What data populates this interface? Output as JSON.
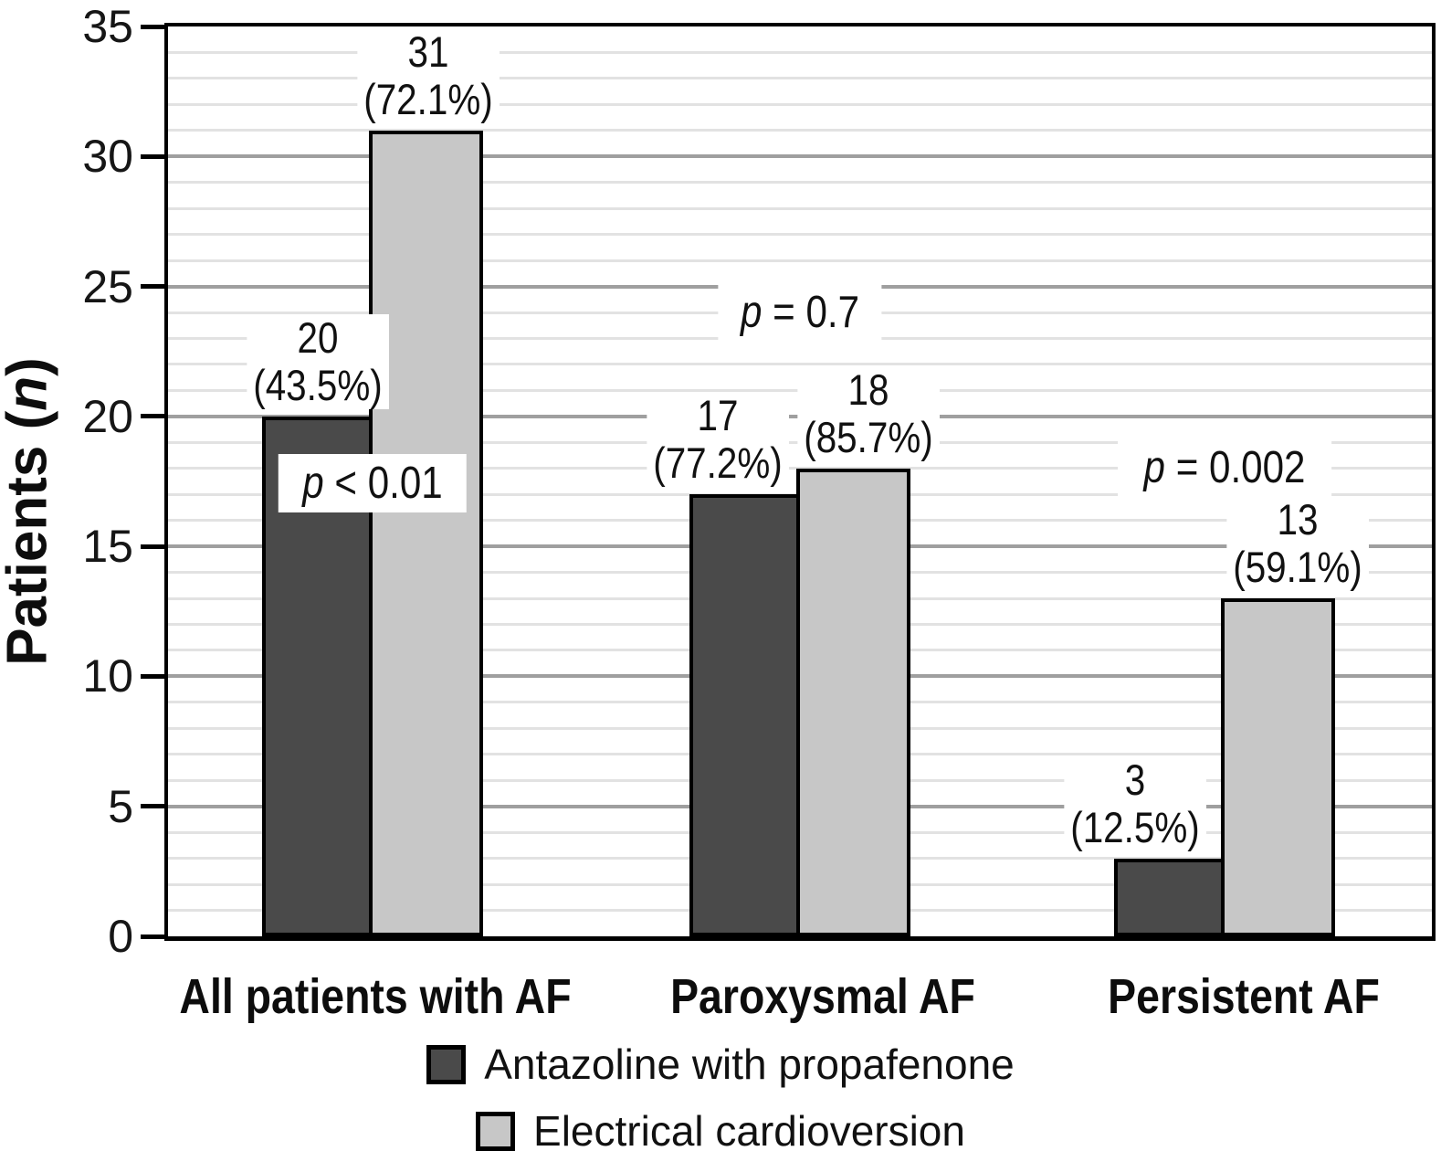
{
  "chart_data": {
    "type": "bar",
    "title": "",
    "xlabel": "",
    "ylabel": "Patients (n)",
    "ylabel_parts": {
      "pre": "Patients (",
      "italic": "n",
      "post": ")"
    },
    "ylim": [
      0,
      35
    ],
    "yticks": [
      0,
      5,
      10,
      15,
      20,
      25,
      30,
      35
    ],
    "ytick_labels": [
      "0",
      "5",
      "10",
      "15",
      "20",
      "25",
      "30",
      "35"
    ],
    "minor_gridline_step": 1,
    "major_gridline_step": 5,
    "grid": "horizontal",
    "legend_position": "bottom-center",
    "categories": [
      "All patients with AF",
      "Paroxysmal AF",
      "Persistent AF"
    ],
    "series": [
      {
        "name": "Antazoline with propafenone",
        "color": "#4a4a4a",
        "values": [
          20,
          17,
          3
        ],
        "count_labels": [
          "20",
          "17",
          "3"
        ],
        "percent_labels": [
          "(43.5%)",
          "(77.2%)",
          "(12.5%)"
        ]
      },
      {
        "name": "Electrical cardioversion",
        "color": "#c7c7c7",
        "values": [
          31,
          18,
          13
        ],
        "count_labels": [
          "31",
          "18",
          "13"
        ],
        "percent_labels": [
          "(72.1%)",
          "(85.7%)",
          "(59.1%)"
        ]
      }
    ],
    "p_values": [
      {
        "group": "All patients with AF",
        "text": "p < 0.01"
      },
      {
        "group": "Paroxysmal AF",
        "text": "p = 0.7"
      },
      {
        "group": "Persistent AF",
        "text": "p = 0.002"
      }
    ]
  }
}
